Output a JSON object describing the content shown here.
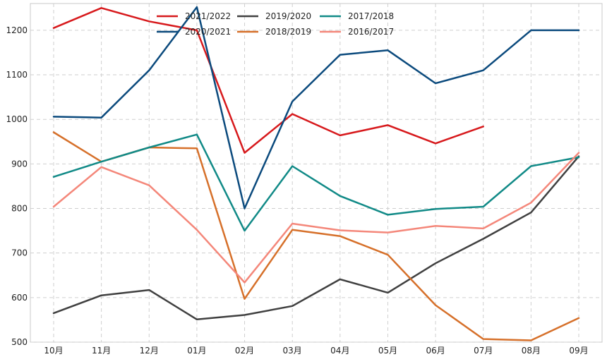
{
  "chart_data": {
    "type": "line",
    "title": "",
    "xlabel": "",
    "ylabel": "",
    "categories": [
      "10月",
      "11月",
      "12月",
      "01月",
      "02月",
      "03月",
      "04月",
      "05月",
      "06月",
      "07月",
      "08月",
      "09月"
    ],
    "ylim": [
      500,
      1260
    ],
    "yticks": [
      500,
      600,
      700,
      800,
      900,
      1000,
      1100,
      1200
    ],
    "grid": true,
    "legend_position": "top-center",
    "series": [
      {
        "name": "2021/2022",
        "color": "#d7191c",
        "values": [
          1205,
          1250,
          1220,
          1200,
          925,
          1012,
          964,
          987,
          946,
          984,
          null,
          null
        ]
      },
      {
        "name": "2020/2021",
        "color": "#0b4a7d",
        "values": [
          1006,
          1004,
          1110,
          1252,
          800,
          1040,
          1145,
          1155,
          1081,
          1110,
          1200,
          1200
        ]
      },
      {
        "name": "2019/2020",
        "color": "#404040",
        "values": [
          565,
          605,
          617,
          551,
          561,
          581,
          641,
          611,
          677,
          732,
          791,
          917
        ]
      },
      {
        "name": "2018/2019",
        "color": "#d6702a",
        "values": [
          971,
          905,
          937,
          935,
          597,
          752,
          738,
          696,
          583,
          507,
          504,
          554
        ]
      },
      {
        "name": "2017/2018",
        "color": "#118a87",
        "values": [
          871,
          905,
          937,
          966,
          750,
          895,
          828,
          786,
          799,
          804,
          895,
          915
        ]
      },
      {
        "name": "2016/2017",
        "color": "#f4877a",
        "values": [
          804,
          893,
          852,
          752,
          634,
          766,
          751,
          746,
          761,
          755,
          813,
          925
        ]
      }
    ]
  }
}
